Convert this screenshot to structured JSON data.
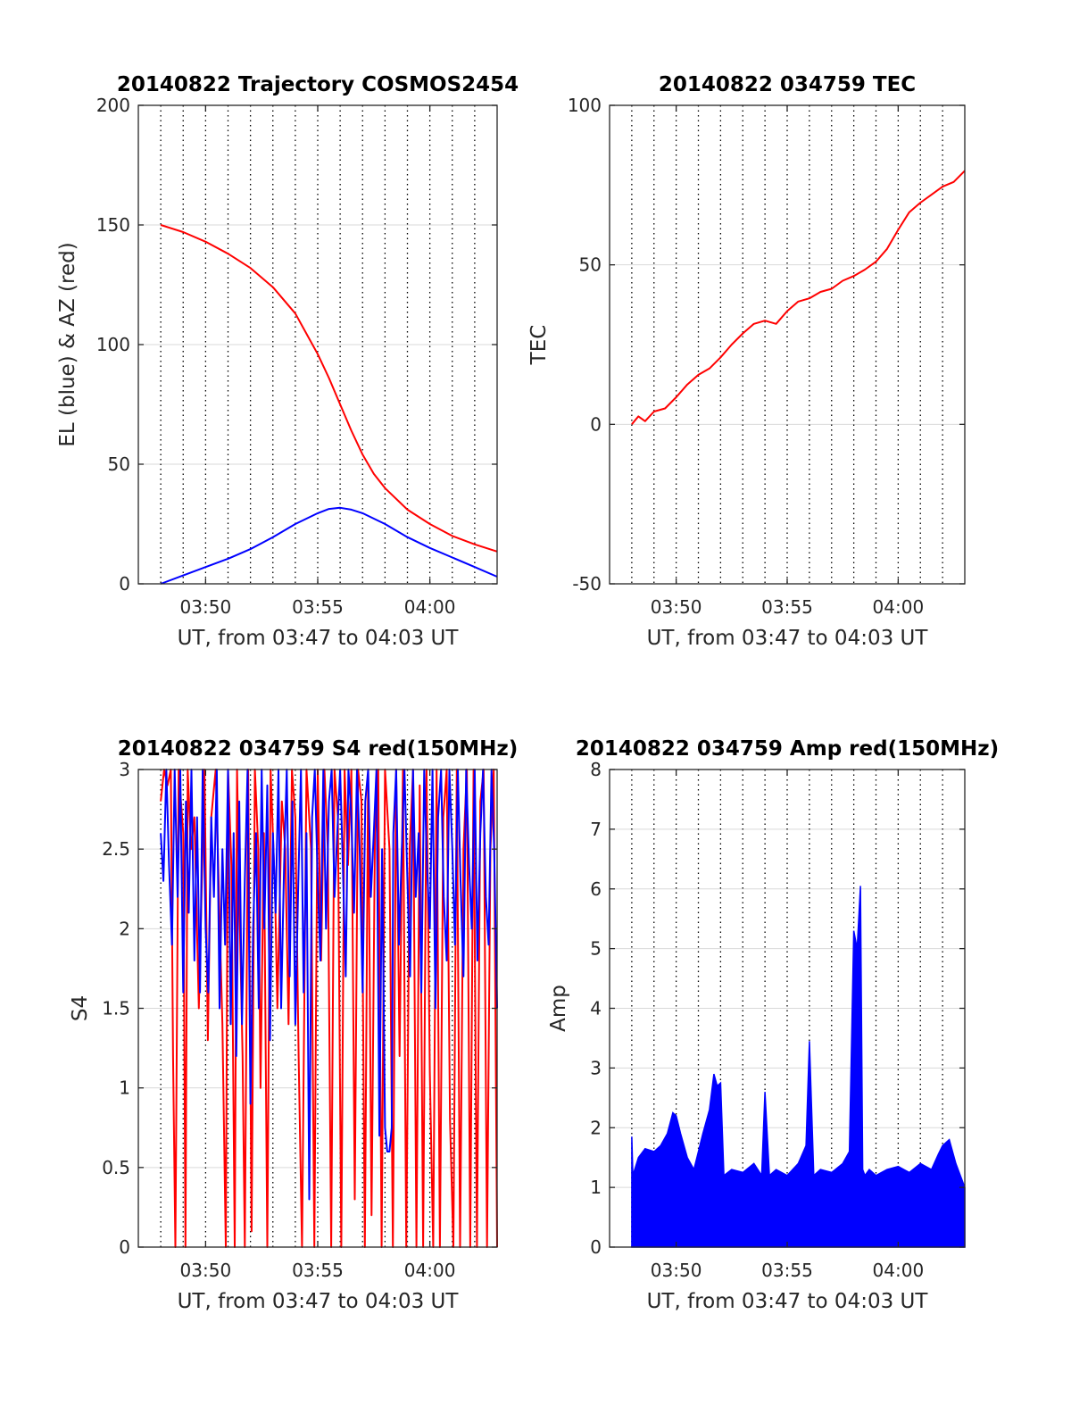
{
  "figure": {
    "colors": {
      "red": "#ff0000",
      "blue": "#0000ff",
      "grid": "#d9d9d9",
      "axis": "#262626"
    },
    "x_axis_shared": {
      "tick_labels": [
        "03:50",
        "03:55",
        "04:00"
      ],
      "tick_minutes": [
        230,
        235,
        240
      ],
      "xlim_minutes": [
        227,
        243
      ],
      "minor_grid_step_minutes": 1,
      "label": "UT, from 03:47 to 04:03 UT"
    }
  },
  "chart_data": [
    {
      "type": "line",
      "title": "20140822 Trajectory COSMOS2454",
      "xlabel": "UT, from 03:47 to 04:03 UT",
      "ylabel": "EL (blue) & AZ (red)",
      "ylim": [
        0,
        200
      ],
      "yticks": [
        "0",
        "50",
        "100",
        "150",
        "200"
      ],
      "grid": true,
      "series": [
        {
          "color": "red",
          "x": [
            228.0,
            229.0,
            230.0,
            231.0,
            232.0,
            233.0,
            234.0,
            235.0,
            235.5,
            236.0,
            236.5,
            237.0,
            237.5,
            238.0,
            239.0,
            240.0,
            241.0,
            242.0,
            243.0
          ],
          "values": [
            150,
            147,
            143,
            138,
            132,
            124,
            113,
            96,
            86,
            75,
            64,
            54,
            46,
            40,
            31,
            25,
            20,
            16.5,
            13.5
          ]
        },
        {
          "color": "blue",
          "x": [
            228.0,
            229.0,
            230.0,
            231.0,
            232.0,
            233.0,
            234.0,
            235.0,
            235.5,
            236.0,
            236.5,
            237.0,
            238.0,
            239.0,
            240.0,
            241.0,
            242.0,
            243.0
          ],
          "values": [
            0,
            3.5,
            7,
            10.5,
            14.5,
            19.5,
            25,
            29.5,
            31.3,
            31.8,
            31,
            29.5,
            25,
            19.5,
            15,
            11,
            7,
            3
          ]
        }
      ]
    },
    {
      "type": "line",
      "title": "20140822 034759 TEC",
      "xlabel": "UT, from 03:47 to 04:03 UT",
      "ylabel": "TEC",
      "ylim": [
        -50,
        100
      ],
      "yticks": [
        "-50",
        "0",
        "50",
        "100"
      ],
      "grid": true,
      "series": [
        {
          "color": "red",
          "x": [
            228.0,
            228.3,
            228.6,
            229.0,
            229.5,
            230.0,
            230.5,
            231.0,
            231.5,
            232.0,
            232.5,
            233.0,
            233.5,
            234.0,
            234.5,
            235.0,
            235.5,
            236.0,
            236.5,
            237.0,
            237.5,
            238.0,
            238.5,
            239.0,
            239.5,
            240.0,
            240.5,
            241.0,
            241.5,
            242.0,
            242.5,
            243.0
          ],
          "values": [
            0,
            2.5,
            1,
            4,
            5,
            8.5,
            12.5,
            15.5,
            17.5,
            21,
            25,
            28.5,
            31.5,
            32.5,
            31.5,
            35.5,
            38.5,
            39.5,
            41.5,
            42.5,
            45,
            46.5,
            48.5,
            51,
            55,
            61,
            66.5,
            69.5,
            72,
            74.5,
            76,
            79.5
          ]
        }
      ]
    },
    {
      "type": "line",
      "title": "20140822 034759 S4 red(150MHz)",
      "xlabel": "UT, from 03:47 to 04:03 UT",
      "ylabel": "S4",
      "ylim": [
        0,
        3
      ],
      "yticks": [
        "0",
        "0.5",
        "1",
        "1.5",
        "2",
        "2.5",
        "3"
      ],
      "grid": true,
      "series": [
        {
          "color": "red",
          "x": [
            228.0,
            228.15,
            228.3,
            228.45,
            228.55,
            228.65,
            228.8,
            229.0,
            229.1,
            229.2,
            229.35,
            229.5,
            229.7,
            229.95,
            230.1,
            230.25,
            230.45,
            230.6,
            230.75,
            230.9,
            231.0,
            231.15,
            231.3,
            231.4,
            231.5,
            231.65,
            231.75,
            231.9,
            232.05,
            232.2,
            232.35,
            232.45,
            232.6,
            232.75,
            232.9,
            233.1,
            233.2,
            233.4,
            233.55,
            233.7,
            233.85,
            234.0,
            234.15,
            234.3,
            234.5,
            234.7,
            234.85,
            235.0,
            235.15,
            235.3,
            235.45,
            235.6,
            235.75,
            235.9,
            236.05,
            236.2,
            236.35,
            236.5,
            236.65,
            236.8,
            236.95,
            237.1,
            237.25,
            237.4,
            237.55,
            237.7,
            237.85,
            238.0,
            238.2,
            238.35,
            238.5,
            238.65,
            238.8,
            238.95,
            239.1,
            239.25,
            239.4,
            239.55,
            239.7,
            239.85,
            240.0,
            240.15,
            240.3,
            240.45,
            240.6,
            240.75,
            240.9,
            241.05,
            241.2,
            241.35,
            241.5,
            241.65,
            241.8,
            241.95,
            242.1,
            242.25,
            242.4,
            242.55,
            242.7,
            242.85,
            243.0
          ],
          "values": [
            2.8,
            3.0,
            2.9,
            3.0,
            1.2,
            0,
            3.0,
            2.6,
            0,
            3.0,
            2.5,
            2.7,
            1.5,
            3.0,
            1.3,
            2.7,
            3.0,
            2.2,
            1.4,
            0,
            3.0,
            2.4,
            0,
            3.0,
            2.2,
            1.2,
            0,
            3.0,
            0.1,
            3.0,
            2.5,
            1.0,
            2.6,
            0,
            3.0,
            2.2,
            1.5,
            2.8,
            2.5,
            1.4,
            3.0,
            2.7,
            1.2,
            0,
            3.0,
            2.5,
            0,
            3.0,
            1.8,
            3.0,
            2.5,
            0,
            3.0,
            2.7,
            0,
            3.0,
            2.4,
            3.0,
            0.3,
            3.0,
            2.8,
            0,
            3.0,
            0.2,
            2.6,
            3.0,
            0,
            3.0,
            2.5,
            0,
            3.0,
            1.2,
            3.0,
            0,
            2.5,
            3.0,
            0,
            2.9,
            0,
            3.0,
            1.1,
            0,
            3.0,
            0,
            2.7,
            3.0,
            0.8,
            0,
            3.0,
            0,
            2.5,
            3.0,
            0,
            3.0,
            0,
            2.8,
            3.0,
            0,
            2.5,
            3.0,
            0
          ]
        },
        {
          "color": "blue",
          "x": [
            228.0,
            228.12,
            228.25,
            228.37,
            228.5,
            228.62,
            228.75,
            228.87,
            229.0,
            229.12,
            229.25,
            229.37,
            229.5,
            229.62,
            229.75,
            229.87,
            230.0,
            230.12,
            230.25,
            230.37,
            230.5,
            230.62,
            230.75,
            230.87,
            231.0,
            231.12,
            231.25,
            231.37,
            231.5,
            231.62,
            231.75,
            231.87,
            232.0,
            232.12,
            232.25,
            232.37,
            232.5,
            232.62,
            232.75,
            232.87,
            233.0,
            233.12,
            233.25,
            233.37,
            233.5,
            233.62,
            233.75,
            233.87,
            234.0,
            234.12,
            234.25,
            234.37,
            234.5,
            234.62,
            234.75,
            234.87,
            235.0,
            235.12,
            235.25,
            235.37,
            235.5,
            235.62,
            235.75,
            235.87,
            236.0,
            236.12,
            236.25,
            236.37,
            236.5,
            236.62,
            236.75,
            236.87,
            237.0,
            237.12,
            237.25,
            237.37,
            237.5,
            237.62,
            237.75,
            237.87,
            238.0,
            238.1,
            238.2,
            238.3,
            238.37,
            238.5,
            238.62,
            238.75,
            238.87,
            239.0,
            239.12,
            239.25,
            239.37,
            239.5,
            239.62,
            239.75,
            239.87,
            240.0,
            240.12,
            240.25,
            240.37,
            240.5,
            240.62,
            240.75,
            240.87,
            241.0,
            241.12,
            241.25,
            241.37,
            241.5,
            241.62,
            241.75,
            241.87,
            242.0,
            242.12,
            242.25,
            242.37,
            242.5,
            242.62,
            242.75,
            242.87,
            243.0
          ],
          "values": [
            2.6,
            2.3,
            3.0,
            2.4,
            1.9,
            3.0,
            2.2,
            3.0,
            1.6,
            2.8,
            2.1,
            3.0,
            1.8,
            2.7,
            1.6,
            3.0,
            2.0,
            1.6,
            2.7,
            2.2,
            3.0,
            1.5,
            2.5,
            1.9,
            3.0,
            1.4,
            2.6,
            1.2,
            2.8,
            1.4,
            2.3,
            3.0,
            0.9,
            2.0,
            2.6,
            1.5,
            3.0,
            2.0,
            2.9,
            1.3,
            2.6,
            2.1,
            3.0,
            1.5,
            2.4,
            3.0,
            1.7,
            2.8,
            1.4,
            2.2,
            3.0,
            1.6,
            2.6,
            0.3,
            2.7,
            3.0,
            2.3,
            1.8,
            3.0,
            2.0,
            2.8,
            3.0,
            2.2,
            2.6,
            3.0,
            2.4,
            1.7,
            3.0,
            2.7,
            2.1,
            3.0,
            2.5,
            1.6,
            2.8,
            3.0,
            2.2,
            2.6,
            3.0,
            0.7,
            2.5,
            0.75,
            0.6,
            0.6,
            0.75,
            2.6,
            3.0,
            1.9,
            2.5,
            3.0,
            2.3,
            1.7,
            3.0,
            2.2,
            2.6,
            1.6,
            3.0,
            2.4,
            2.0,
            3.0,
            1.5,
            2.7,
            3.0,
            2.2,
            1.8,
            3.0,
            2.5,
            1.9,
            3.0,
            2.3,
            1.7,
            3.0,
            2.4,
            2.0,
            3.0,
            1.8,
            2.6,
            3.0,
            2.2,
            1.9,
            3.0,
            2.5,
            1.5
          ]
        }
      ]
    },
    {
      "type": "line",
      "title": "20140822 034759 Amp red(150MHz)",
      "xlabel": "UT, from 03:47 to 04:03 UT",
      "ylabel": "Amp",
      "ylim": [
        0,
        8
      ],
      "yticks": [
        "0",
        "1",
        "2",
        "3",
        "4",
        "5",
        "6",
        "7",
        "8"
      ],
      "grid": true,
      "series": [
        {
          "color": "blue",
          "x": [
            228.0,
            228.05,
            228.3,
            228.6,
            229.0,
            229.3,
            229.6,
            229.85,
            230.0,
            230.2,
            230.5,
            230.8,
            231.0,
            231.2,
            231.5,
            231.7,
            231.85,
            232.0,
            232.15,
            232.5,
            233.0,
            233.5,
            233.85,
            234.0,
            234.2,
            234.5,
            235.0,
            235.5,
            235.85,
            236.0,
            236.2,
            236.5,
            237.0,
            237.5,
            237.8,
            238.0,
            238.15,
            238.3,
            238.4,
            238.5,
            238.7,
            239.0,
            239.5,
            240.0,
            240.5,
            241.0,
            241.5,
            241.8,
            242.0,
            242.3,
            242.6,
            243.0
          ],
          "values": [
            1.85,
            1.2,
            1.5,
            1.65,
            1.6,
            1.7,
            1.9,
            2.25,
            2.2,
            1.9,
            1.5,
            1.3,
            1.6,
            1.9,
            2.3,
            2.9,
            2.7,
            2.75,
            1.2,
            1.3,
            1.25,
            1.4,
            1.2,
            2.6,
            1.2,
            1.3,
            1.2,
            1.4,
            1.7,
            3.45,
            1.2,
            1.3,
            1.25,
            1.4,
            1.6,
            5.3,
            5.0,
            6.05,
            1.3,
            1.2,
            1.3,
            1.2,
            1.3,
            1.35,
            1.25,
            1.4,
            1.3,
            1.55,
            1.7,
            1.8,
            1.4,
            1.0
          ]
        }
      ]
    }
  ]
}
